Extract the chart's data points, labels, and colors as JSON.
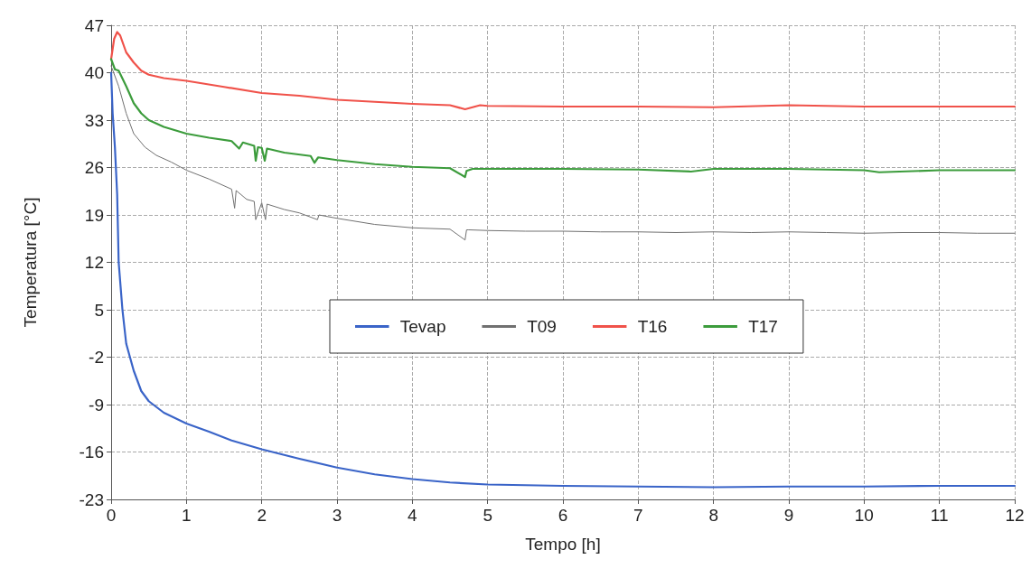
{
  "chart_data": {
    "type": "line",
    "xlabel": "Tempo [h]",
    "ylabel": "Temperatura [°C]",
    "xlim": [
      0,
      12
    ],
    "xticks": [
      0,
      1,
      2,
      3,
      4,
      5,
      6,
      7,
      8,
      9,
      10,
      11,
      12
    ],
    "ylim": [
      -23,
      47
    ],
    "yticks": [
      -23,
      -16,
      -9,
      -2,
      5,
      12,
      19,
      26,
      33,
      40,
      47
    ],
    "grid": true,
    "legend": "right",
    "marker": "none",
    "line_style": "solid",
    "series": [
      {
        "name": "Tevap",
        "color": "#3a64c8",
        "x": [
          0,
          0.02,
          0.05,
          0.08,
          0.1,
          0.15,
          0.2,
          0.25,
          0.3,
          0.4,
          0.5,
          0.7,
          1,
          1.3,
          1.6,
          2,
          2.5,
          3,
          3.5,
          4,
          4.5,
          5,
          6,
          7,
          8,
          9,
          10,
          11,
          12
        ],
        "values": [
          40,
          34,
          29,
          22,
          12,
          5,
          0,
          -2,
          -4,
          -7,
          -8.5,
          -10.2,
          -11.8,
          -13,
          -14.3,
          -15.6,
          -17,
          -18.3,
          -19.3,
          -20,
          -20.5,
          -20.8,
          -21,
          -21.1,
          -21.2,
          -21.1,
          -21.1,
          -21,
          -21
        ]
      },
      {
        "name": "T09",
        "color": "#707070",
        "x": [
          0,
          0.1,
          0.2,
          0.3,
          0.45,
          0.6,
          0.8,
          1,
          1.3,
          1.6,
          1.64,
          1.66,
          1.8,
          1.9,
          1.92,
          2,
          2.05,
          2.07,
          2.3,
          2.5,
          2.74,
          2.76,
          3,
          3.5,
          4,
          4.5,
          4.7,
          4.72,
          4.75,
          5,
          5.5,
          6,
          6.5,
          7,
          7.5,
          8,
          8.5,
          9,
          9.5,
          10,
          10.5,
          11,
          11.5,
          12
        ],
        "values": [
          41,
          38,
          34,
          31,
          29,
          27.8,
          26.8,
          25.6,
          24.3,
          22.8,
          20,
          22.6,
          21.3,
          21,
          18.3,
          20.8,
          18.3,
          20.6,
          19.8,
          19.3,
          18.3,
          19,
          18.5,
          17.6,
          17.1,
          16.9,
          15.3,
          16.8,
          16.8,
          16.7,
          16.6,
          16.6,
          16.5,
          16.5,
          16.4,
          16.5,
          16.4,
          16.5,
          16.4,
          16.3,
          16.4,
          16.4,
          16.3,
          16.3
        ]
      },
      {
        "name": "T16",
        "color": "#f0524a",
        "x": [
          0,
          0.04,
          0.08,
          0.12,
          0.2,
          0.3,
          0.4,
          0.5,
          0.7,
          1,
          1.5,
          2,
          2.5,
          3,
          3.5,
          4,
          4.5,
          4.7,
          4.9,
          5,
          6,
          7,
          8,
          9,
          10,
          11,
          12
        ],
        "values": [
          42,
          45,
          46,
          45.5,
          43,
          41.5,
          40.3,
          39.7,
          39.2,
          38.8,
          37.9,
          37,
          36.6,
          36,
          35.7,
          35.4,
          35.2,
          34.6,
          35.2,
          35.1,
          35,
          35,
          34.9,
          35.2,
          35,
          35,
          35
        ]
      },
      {
        "name": "T17",
        "color": "#3c9c3c",
        "x": [
          0,
          0.05,
          0.1,
          0.2,
          0.3,
          0.4,
          0.5,
          0.7,
          1,
          1.3,
          1.6,
          1.7,
          1.75,
          1.9,
          1.92,
          1.95,
          2,
          2.04,
          2.07,
          2.3,
          2.65,
          2.7,
          2.75,
          3,
          3.5,
          4,
          4.5,
          4.7,
          4.72,
          4.8,
          5,
          6,
          7,
          7.7,
          8,
          9,
          10,
          10.2,
          11,
          12
        ],
        "values": [
          42,
          40.5,
          40.3,
          38,
          35.5,
          34,
          33,
          32,
          31,
          30.4,
          29.9,
          28.8,
          29.7,
          29.2,
          27,
          29,
          28.9,
          27,
          28.8,
          28.2,
          27.7,
          26.7,
          27.5,
          27.1,
          26.5,
          26.1,
          25.9,
          24.6,
          25.5,
          25.8,
          25.8,
          25.8,
          25.7,
          25.4,
          25.8,
          25.8,
          25.6,
          25.3,
          25.6,
          25.6
        ]
      }
    ]
  }
}
